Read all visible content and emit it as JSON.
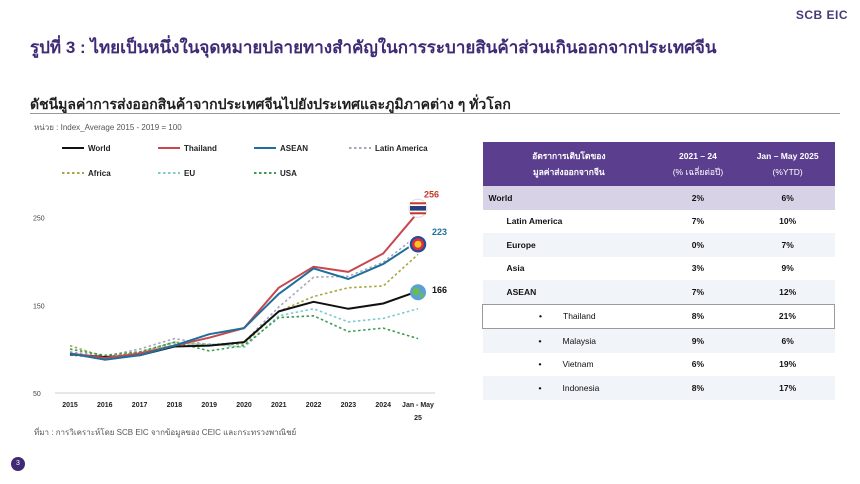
{
  "brand": "SCB EIC",
  "slide_title": "รูปที่ 3 : ไทยเป็นหนึ่งในจุดหมายปลายทางสำคัญในการระบายสินค้าส่วนเกินออกจากประเทศจีน",
  "section_title": "ดัชนีมูลค่าการส่งออกสินค้าจากประเทศจีนไปยังประเทศและภูมิภาคต่าง ๆ ทั่วโลก",
  "unit_note": "หน่วย : Index_Average 2015 - 2019 = 100",
  "source_note": "ที่มา : การวิเคราะห์โดย SCB EIC จากข้อมูลของ CEIC และกระทรวงพาณิชย์",
  "page_number": "3",
  "chart_data": {
    "type": "line",
    "categories": [
      "2015",
      "2016",
      "2017",
      "2018",
      "2019",
      "2020",
      "2021",
      "2022",
      "2023",
      "2024",
      "Jan - May 25"
    ],
    "x_tick_labels": [
      "2015",
      "2016",
      "2017",
      "2018",
      "2019",
      "2020",
      "2021",
      "2022",
      "2023",
      "2024",
      "Jan - May",
      "25"
    ],
    "ylim": [
      50,
      270
    ],
    "y_ticks": [
      "50",
      "150",
      "250"
    ],
    "grid": false,
    "legend_position": "top",
    "series": [
      {
        "name": "World",
        "color": "#111111",
        "dash": "solid",
        "values": [
          94,
          91,
          93,
          103,
          104,
          108,
          143,
          154,
          146,
          152,
          166
        ]
      },
      {
        "name": "Thailand",
        "color": "#c8474f",
        "dash": "solid",
        "values": [
          95,
          90,
          95,
          104,
          113,
          124,
          170,
          194,
          188,
          209,
          256
        ]
      },
      {
        "name": "ASEAN",
        "color": "#1f6f9c",
        "dash": "solid",
        "values": [
          95,
          88,
          93,
          104,
          117,
          124,
          163,
          192,
          180,
          197,
          223
        ]
      },
      {
        "name": "Latin America",
        "color": "#a5a5c0",
        "dash": "dotted",
        "values": [
          97,
          92,
          100,
          112,
          105,
          108,
          148,
          182,
          183,
          199,
          230
        ]
      },
      {
        "name": "Africa",
        "color": "#a8a63c",
        "dash": "dotted",
        "values": [
          104,
          91,
          96,
          108,
          104,
          106,
          143,
          160,
          170,
          172,
          208
        ]
      },
      {
        "name": "EU",
        "color": "#7ccad2",
        "dash": "dotted",
        "values": [
          93,
          90,
          96,
          106,
          106,
          102,
          138,
          146,
          131,
          135,
          146
        ]
      },
      {
        "name": "USA",
        "color": "#3d9b4e",
        "dash": "dotted",
        "values": [
          100,
          93,
          97,
          108,
          98,
          104,
          136,
          138,
          120,
          124,
          112
        ]
      }
    ],
    "end_labels": [
      {
        "text": "256",
        "color": "#c0392b",
        "series": "Thailand"
      },
      {
        "text": "223",
        "color": "#1f6f9c",
        "series": "ASEAN"
      },
      {
        "text": "166",
        "color": "#111111",
        "series": "World"
      }
    ]
  },
  "table": {
    "headers": {
      "col1_line1": "อัตราการเติบโตของ",
      "col1_line2": "มูลค่าส่งออกจากจีน",
      "col2_line1": "2021 – 24",
      "col2_line2": "(% เฉลี่ยต่อปี)",
      "col3_line1": "Jan – May 2025",
      "col3_line2": "(%YTD)"
    },
    "rows": [
      {
        "label": "World",
        "v1": "2%",
        "v2": "6%"
      },
      {
        "label": "Latin America",
        "v1": "7%",
        "v2": "10%"
      },
      {
        "label": "Europe",
        "v1": "0%",
        "v2": "7%"
      },
      {
        "label": "Asia",
        "v1": "3%",
        "v2": "9%"
      },
      {
        "label": "ASEAN",
        "v1": "7%",
        "v2": "12%"
      },
      {
        "label": "Thailand",
        "v1": "8%",
        "v2": "21%"
      },
      {
        "label": "Malaysia",
        "v1": "9%",
        "v2": "6%"
      },
      {
        "label": "Vietnam",
        "v1": "6%",
        "v2": "19%"
      },
      {
        "label": "Indonesia",
        "v1": "8%",
        "v2": "17%"
      }
    ]
  }
}
